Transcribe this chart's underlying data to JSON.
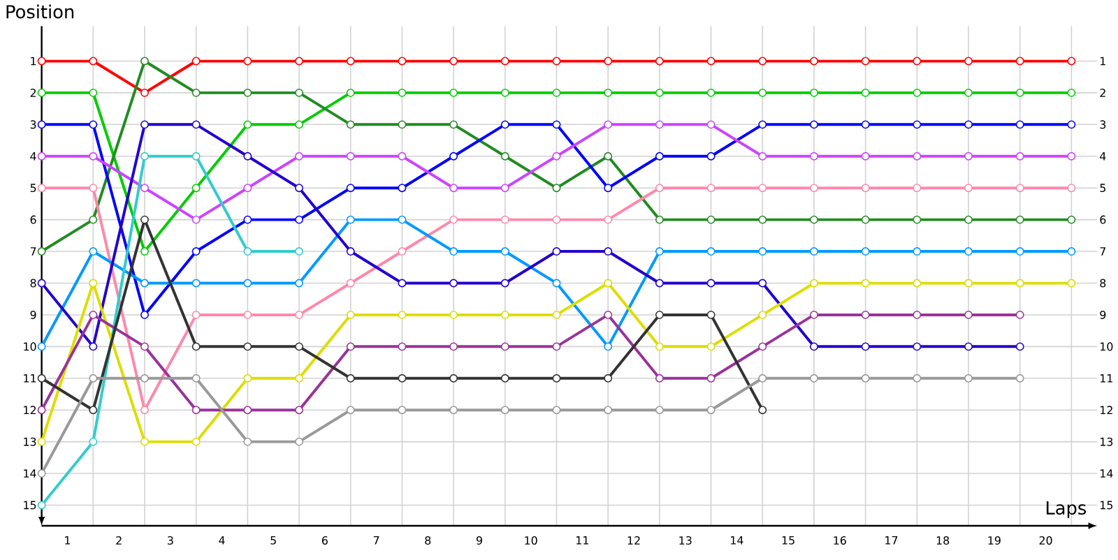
{
  "chart_data": {
    "type": "line",
    "xlabel": "Laps",
    "ylabel": "Position",
    "x": [
      0,
      1,
      2,
      3,
      4,
      5,
      6,
      7,
      8,
      9,
      10,
      11,
      12,
      13,
      14,
      15,
      16,
      17,
      18,
      19,
      20
    ],
    "xlim": [
      0,
      20.5
    ],
    "xticks": [
      {
        "value": 0.5,
        "label": "1"
      },
      {
        "value": 1.5,
        "label": "2"
      },
      {
        "value": 2.5,
        "label": "3"
      },
      {
        "value": 3.5,
        "label": "4"
      },
      {
        "value": 4.5,
        "label": "5"
      },
      {
        "value": 5.5,
        "label": "6"
      },
      {
        "value": 6.5,
        "label": "7"
      },
      {
        "value": 7.5,
        "label": "8"
      },
      {
        "value": 8.5,
        "label": "9"
      },
      {
        "value": 9.5,
        "label": "10"
      },
      {
        "value": 10.5,
        "label": "11"
      },
      {
        "value": 11.5,
        "label": "12"
      },
      {
        "value": 12.5,
        "label": "13"
      },
      {
        "value": 13.5,
        "label": "14"
      },
      {
        "value": 14.5,
        "label": "15"
      },
      {
        "value": 15.5,
        "label": "16"
      },
      {
        "value": 16.5,
        "label": "17"
      },
      {
        "value": 17.5,
        "label": "18"
      },
      {
        "value": 18.5,
        "label": "19"
      },
      {
        "value": 19.5,
        "label": "20"
      }
    ],
    "ylim": [
      15.65,
      -0.1
    ],
    "yticks": [
      1,
      2,
      3,
      4,
      5,
      6,
      7,
      8,
      9,
      10,
      11,
      12,
      13,
      14,
      15
    ],
    "y2lim": [
      15.65,
      -0.1
    ],
    "y2ticks": [
      1,
      2,
      3,
      4,
      5,
      6,
      7,
      8,
      9,
      10,
      11,
      12,
      13,
      14,
      15
    ],
    "grid": true,
    "marker": "circle",
    "line_style": "solid",
    "series": [
      {
        "color": "#ff0000",
        "values": [
          1,
          1,
          2,
          1,
          1,
          1,
          1,
          1,
          1,
          1,
          1,
          1,
          1,
          1,
          1,
          1,
          1,
          1,
          1,
          1,
          1
        ]
      },
      {
        "color": "#00cc00",
        "values": [
          2,
          2,
          7,
          5,
          3,
          3,
          2,
          2,
          2,
          2,
          2,
          2,
          2,
          2,
          2,
          2,
          2,
          2,
          2,
          2,
          2
        ]
      },
      {
        "color": "#228b22",
        "values": [
          7,
          6,
          1,
          2,
          2,
          2,
          3,
          3,
          3,
          4,
          5,
          4,
          6,
          6,
          6,
          6,
          6,
          6,
          6,
          6,
          6
        ]
      },
      {
        "color": "#0000ff",
        "values": [
          3,
          3,
          9,
          7,
          6,
          6,
          5,
          5,
          4,
          3,
          3,
          5,
          4,
          4,
          3,
          3,
          3,
          3,
          3,
          3,
          3
        ]
      },
      {
        "color": "#cc44ff",
        "values": [
          4,
          4,
          5,
          6,
          5,
          4,
          4,
          4,
          5,
          5,
          4,
          3,
          3,
          3,
          4,
          4,
          4,
          4,
          4,
          4,
          4
        ]
      },
      {
        "color": "#ff88aa",
        "values": [
          5,
          5,
          12,
          9,
          9,
          9,
          8,
          7,
          6,
          6,
          6,
          6,
          5,
          5,
          5,
          5,
          5,
          5,
          5,
          5,
          5
        ]
      },
      {
        "color": "#0099ff",
        "values": [
          10,
          7,
          8,
          8,
          8,
          8,
          6,
          6,
          7,
          7,
          8,
          10,
          7,
          7,
          7,
          7,
          7,
          7,
          7,
          7,
          7
        ]
      },
      {
        "color": "#2200cc",
        "values": [
          8,
          10,
          3,
          3,
          4,
          5,
          7,
          8,
          8,
          8,
          7,
          7,
          8,
          8,
          8,
          10,
          10,
          10,
          10,
          10,
          null
        ]
      },
      {
        "color": "#33cccc",
        "values": [
          15,
          13,
          4,
          4,
          7,
          7,
          null,
          null,
          null,
          null,
          null,
          null,
          null,
          null,
          null,
          null,
          null,
          null,
          null,
          null,
          null
        ]
      },
      {
        "color": "#dddd00",
        "values": [
          13,
          8,
          13,
          13,
          11,
          11,
          9,
          9,
          9,
          9,
          9,
          8,
          10,
          10,
          9,
          8,
          8,
          8,
          8,
          8,
          8
        ]
      },
      {
        "color": "#993399",
        "values": [
          12,
          9,
          10,
          12,
          12,
          12,
          10,
          10,
          10,
          10,
          10,
          9,
          11,
          11,
          10,
          9,
          9,
          9,
          9,
          9,
          null
        ]
      },
      {
        "color": "#333333",
        "values": [
          11,
          12,
          6,
          10,
          10,
          10,
          11,
          11,
          11,
          11,
          11,
          11,
          9,
          9,
          12,
          null,
          null,
          null,
          null,
          null,
          null
        ]
      },
      {
        "color": "#999999",
        "values": [
          14,
          11,
          11,
          11,
          13,
          13,
          12,
          12,
          12,
          12,
          12,
          12,
          12,
          12,
          11,
          11,
          11,
          11,
          11,
          11,
          null
        ]
      }
    ]
  }
}
